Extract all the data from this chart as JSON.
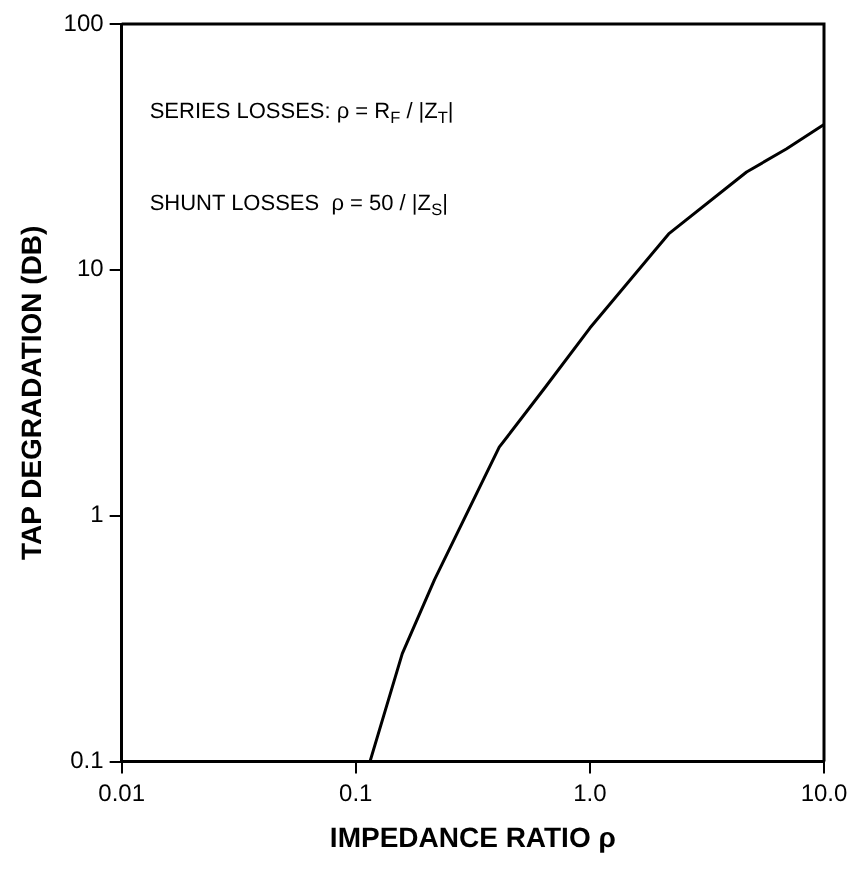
{
  "chart_data": {
    "type": "line",
    "xlabel": "IMPEDANCE RATIO ρ",
    "ylabel": "TAP DEGRADATION (DB)",
    "log": "xy",
    "grid": false,
    "legend": false,
    "marker": "none",
    "line_style": "solid",
    "xlim": [
      0.01,
      10
    ],
    "xticks": [
      0.01,
      {
        "value": 0.1,
        "label": "0.1"
      },
      {
        "value": 1,
        "label": "1.0"
      },
      {
        "value": 10,
        "label": "10.0"
      }
    ],
    "ylim": [
      0.1,
      100
    ],
    "yticks": [
      0.1,
      1,
      10,
      100
    ],
    "annotations": [
      "SERIES LOSSES: ρ = R$_{F}$ / |Z$_{T}$|",
      "SHUNT LOSSES  ρ = 50 / |Z$_{S}$|"
    ],
    "series": [
      {
        "color": "#000000",
        "x": [
          0.115,
          0.158,
          0.217,
          0.41,
          0.64,
          1.0,
          2.17,
          4.67,
          6.9,
          10
        ],
        "values": [
          0.1,
          0.275,
          0.55,
          1.9,
          3.3,
          5.8,
          14,
          25,
          31,
          39
        ]
      }
    ]
  }
}
